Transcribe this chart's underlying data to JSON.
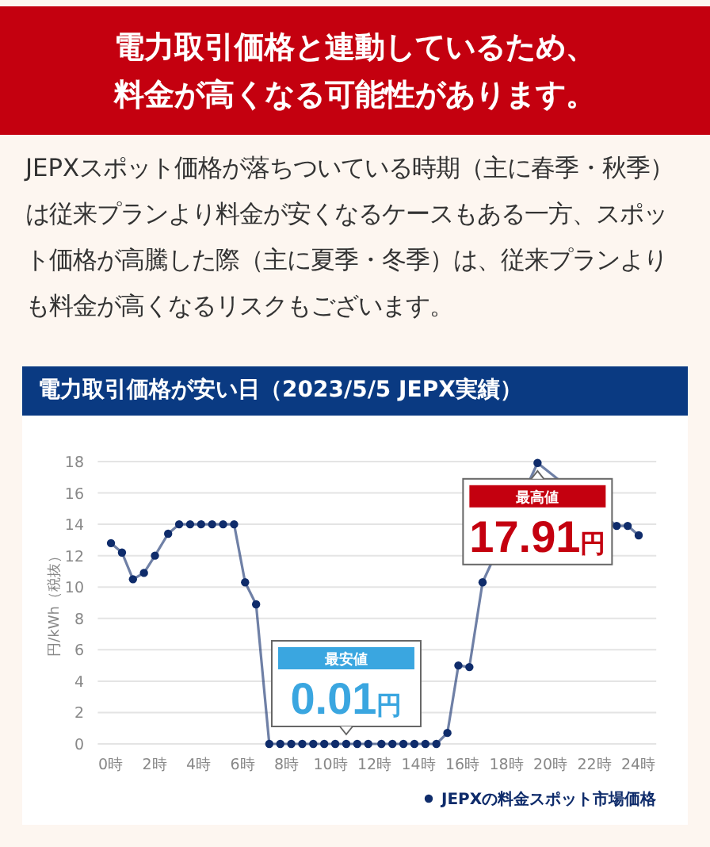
{
  "chart_data": {
    "type": "line",
    "title": "電力取引価格が安い日（2023/5/5 JEPX実績）",
    "ylabel": "円/kWh（税抜）",
    "annotations": [
      "電力取引価格と連動しているため、料金が高くなる可能性があります。",
      "JEPXスポット価格が落ちついている時期（主に春季・秋季）は従来プランより料金が安くなるケースもある一方、スポット価格が高騰した際（主に夏季・冬季）は、従来プランよりも料金が高くなるリスクもございます。",
      "最安値",
      "0.01円",
      "最高値",
      "17.91円"
    ],
    "x": [
      0,
      0.5,
      1,
      1.5,
      2,
      2.6,
      3.1,
      3.6,
      4.1,
      4.6,
      5.1,
      5.6,
      6.1,
      6.6,
      7.2,
      7.7,
      8.2,
      8.7,
      9.2,
      9.7,
      10.2,
      10.7,
      11.2,
      11.7,
      12.3,
      12.8,
      13.3,
      13.8,
      14.3,
      14.8,
      15.3,
      15.8,
      16.3,
      16.9,
      19.4,
      23.0,
      23.5,
      24.0
    ],
    "series": [
      {
        "name": "JEPXの料金スポット市場価格",
        "color": "#0f2c6b",
        "values": [
          12.8,
          12.2,
          10.5,
          10.9,
          12.0,
          13.4,
          14.0,
          14.0,
          14.0,
          14.0,
          14.0,
          14.0,
          10.3,
          8.9,
          0,
          0,
          0,
          0,
          0,
          0,
          0,
          0,
          0,
          0,
          0,
          0,
          0,
          0,
          0,
          0,
          0.7,
          5.0,
          4.9,
          10.3,
          17.91,
          13.9,
          13.9,
          13.3
        ]
      }
    ],
    "xlim": [
      -0.6,
      24.8
    ],
    "ylim": [
      0,
      18
    ],
    "xticks": [
      {
        "value": 0,
        "label": "0時"
      },
      {
        "value": 2,
        "label": "2時"
      },
      {
        "value": 4,
        "label": "4時"
      },
      {
        "value": 6,
        "label": "6時"
      },
      {
        "value": 8,
        "label": "8時"
      },
      {
        "value": 10,
        "label": "10時"
      },
      {
        "value": 12,
        "label": "12時"
      },
      {
        "value": 14,
        "label": "14時"
      },
      {
        "value": 16,
        "label": "16時"
      },
      {
        "value": 18,
        "label": "18時"
      },
      {
        "value": 20,
        "label": "20時"
      },
      {
        "value": 22,
        "label": "22時"
      },
      {
        "value": 24,
        "label": "24時"
      }
    ],
    "yticks": [
      0,
      2,
      4,
      6,
      8,
      10,
      12,
      14,
      16,
      18
    ],
    "grid": "y",
    "marker": "circle",
    "line_style": "solid",
    "legend": "bottom right"
  }
}
